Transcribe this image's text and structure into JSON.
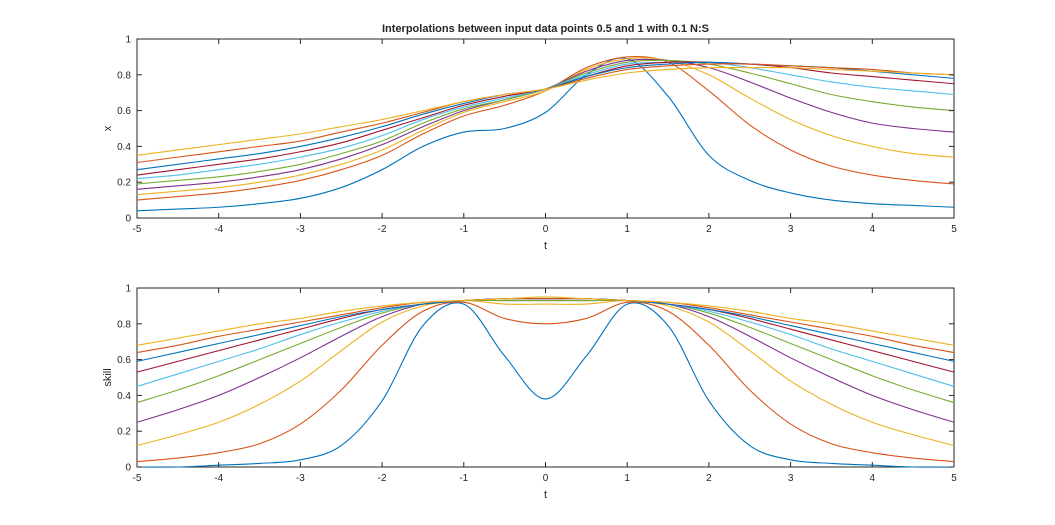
{
  "chart_data": [
    {
      "type": "line",
      "title": "Interpolations between input data points 0.5 and 1 with 0.1 N:S",
      "xlabel": "t",
      "ylabel": "x",
      "xlim": [
        -5,
        5
      ],
      "ylim": [
        0,
        1
      ],
      "xticks": [
        "-5",
        "-4",
        "-3",
        "-2",
        "-1",
        "0",
        "1",
        "2",
        "3",
        "4",
        "5"
      ],
      "yticks": [
        "0",
        "0.2",
        "0.4",
        "0.6",
        "0.8",
        "1"
      ],
      "grid": false,
      "x": [
        -5,
        -4.5,
        -4,
        -3.5,
        -3,
        -2.5,
        -2,
        -1.5,
        -1,
        -0.5,
        0,
        0.5,
        1,
        1.5,
        2,
        2.5,
        3,
        3.5,
        4,
        4.5,
        5
      ],
      "series": [
        {
          "color": "#0072BD",
          "values": [
            0.04,
            0.05,
            0.06,
            0.08,
            0.11,
            0.17,
            0.27,
            0.4,
            0.48,
            0.5,
            0.59,
            0.8,
            0.89,
            0.68,
            0.35,
            0.21,
            0.14,
            0.1,
            0.08,
            0.07,
            0.06
          ]
        },
        {
          "color": "#D95319",
          "values": [
            0.1,
            0.12,
            0.14,
            0.17,
            0.21,
            0.27,
            0.35,
            0.47,
            0.57,
            0.63,
            0.71,
            0.84,
            0.9,
            0.87,
            0.71,
            0.52,
            0.38,
            0.29,
            0.24,
            0.21,
            0.19
          ]
        },
        {
          "color": "#EDB120",
          "values": [
            0.13,
            0.15,
            0.17,
            0.2,
            0.24,
            0.3,
            0.38,
            0.49,
            0.59,
            0.65,
            0.71,
            0.83,
            0.89,
            0.88,
            0.8,
            0.67,
            0.55,
            0.46,
            0.4,
            0.36,
            0.34
          ]
        },
        {
          "color": "#7E2F8E",
          "values": [
            0.16,
            0.18,
            0.2,
            0.23,
            0.27,
            0.33,
            0.41,
            0.51,
            0.6,
            0.66,
            0.72,
            0.82,
            0.88,
            0.88,
            0.84,
            0.76,
            0.67,
            0.59,
            0.53,
            0.5,
            0.48
          ]
        },
        {
          "color": "#77AC30",
          "values": [
            0.19,
            0.21,
            0.23,
            0.26,
            0.3,
            0.36,
            0.43,
            0.53,
            0.61,
            0.66,
            0.72,
            0.81,
            0.87,
            0.88,
            0.86,
            0.81,
            0.75,
            0.69,
            0.65,
            0.62,
            0.6
          ]
        },
        {
          "color": "#4DBEEE",
          "values": [
            0.22,
            0.24,
            0.27,
            0.3,
            0.34,
            0.39,
            0.46,
            0.55,
            0.62,
            0.67,
            0.72,
            0.8,
            0.86,
            0.87,
            0.87,
            0.84,
            0.8,
            0.76,
            0.73,
            0.71,
            0.69
          ]
        },
        {
          "color": "#A2142F",
          "values": [
            0.24,
            0.27,
            0.3,
            0.33,
            0.37,
            0.42,
            0.49,
            0.56,
            0.63,
            0.68,
            0.72,
            0.79,
            0.85,
            0.87,
            0.87,
            0.86,
            0.84,
            0.81,
            0.79,
            0.77,
            0.75
          ]
        },
        {
          "color": "#0072BD",
          "values": [
            0.27,
            0.3,
            0.33,
            0.36,
            0.4,
            0.45,
            0.51,
            0.58,
            0.64,
            0.69,
            0.72,
            0.79,
            0.84,
            0.86,
            0.87,
            0.86,
            0.85,
            0.84,
            0.82,
            0.8,
            0.78
          ]
        },
        {
          "color": "#D95319",
          "values": [
            0.31,
            0.34,
            0.37,
            0.4,
            0.43,
            0.48,
            0.53,
            0.59,
            0.65,
            0.69,
            0.72,
            0.78,
            0.83,
            0.85,
            0.86,
            0.86,
            0.85,
            0.84,
            0.83,
            0.81,
            0.8
          ]
        },
        {
          "color": "#EDB120",
          "values": [
            0.35,
            0.38,
            0.41,
            0.44,
            0.47,
            0.51,
            0.55,
            0.6,
            0.65,
            0.69,
            0.72,
            0.77,
            0.81,
            0.83,
            0.84,
            0.84,
            0.84,
            0.83,
            0.82,
            0.81,
            0.8
          ]
        }
      ]
    },
    {
      "type": "line",
      "title": "",
      "xlabel": "t",
      "ylabel": "skill",
      "xlim": [
        -5,
        5
      ],
      "ylim": [
        0,
        1
      ],
      "xticks": [
        "-5",
        "-4",
        "-3",
        "-2",
        "-1",
        "0",
        "1",
        "2",
        "3",
        "4",
        "5"
      ],
      "yticks": [
        "0",
        "0.2",
        "0.4",
        "0.6",
        "0.8",
        "1"
      ],
      "grid": false,
      "x": [
        -5,
        -4.5,
        -4,
        -3.5,
        -3,
        -2.5,
        -2,
        -1.5,
        -1,
        -0.5,
        0,
        0.5,
        1,
        1.5,
        2,
        2.5,
        3,
        3.5,
        4,
        4.5,
        5
      ],
      "series": [
        {
          "color": "#0072BD",
          "values": [
            0.0,
            0.0,
            0.01,
            0.02,
            0.04,
            0.12,
            0.37,
            0.79,
            0.91,
            0.62,
            0.38,
            0.62,
            0.91,
            0.79,
            0.37,
            0.12,
            0.04,
            0.02,
            0.01,
            0.0,
            0.0
          ]
        },
        {
          "color": "#D95319",
          "values": [
            0.03,
            0.05,
            0.08,
            0.13,
            0.24,
            0.43,
            0.68,
            0.87,
            0.92,
            0.83,
            0.8,
            0.83,
            0.92,
            0.87,
            0.68,
            0.43,
            0.24,
            0.13,
            0.08,
            0.05,
            0.03
          ]
        },
        {
          "color": "#EDB120",
          "values": [
            0.12,
            0.18,
            0.25,
            0.35,
            0.48,
            0.65,
            0.81,
            0.9,
            0.93,
            0.91,
            0.91,
            0.91,
            0.93,
            0.9,
            0.81,
            0.65,
            0.48,
            0.35,
            0.25,
            0.18,
            0.12
          ]
        },
        {
          "color": "#7E2F8E",
          "values": [
            0.25,
            0.32,
            0.4,
            0.5,
            0.61,
            0.73,
            0.84,
            0.91,
            0.93,
            0.93,
            0.93,
            0.93,
            0.93,
            0.91,
            0.84,
            0.73,
            0.61,
            0.5,
            0.4,
            0.32,
            0.25
          ]
        },
        {
          "color": "#77AC30",
          "values": [
            0.36,
            0.43,
            0.51,
            0.6,
            0.69,
            0.78,
            0.86,
            0.91,
            0.93,
            0.93,
            0.93,
            0.93,
            0.93,
            0.91,
            0.86,
            0.78,
            0.69,
            0.6,
            0.51,
            0.43,
            0.36
          ]
        },
        {
          "color": "#4DBEEE",
          "values": [
            0.45,
            0.52,
            0.59,
            0.66,
            0.74,
            0.81,
            0.87,
            0.91,
            0.93,
            0.94,
            0.94,
            0.94,
            0.93,
            0.91,
            0.87,
            0.81,
            0.74,
            0.66,
            0.59,
            0.52,
            0.45
          ]
        },
        {
          "color": "#A2142F",
          "values": [
            0.53,
            0.59,
            0.65,
            0.71,
            0.77,
            0.83,
            0.88,
            0.91,
            0.93,
            0.94,
            0.94,
            0.94,
            0.93,
            0.91,
            0.88,
            0.83,
            0.77,
            0.71,
            0.65,
            0.59,
            0.53
          ]
        },
        {
          "color": "#0072BD",
          "values": [
            0.59,
            0.64,
            0.69,
            0.74,
            0.79,
            0.84,
            0.88,
            0.91,
            0.93,
            0.94,
            0.94,
            0.94,
            0.93,
            0.91,
            0.88,
            0.84,
            0.79,
            0.74,
            0.69,
            0.64,
            0.59
          ]
        },
        {
          "color": "#D95319",
          "values": [
            0.64,
            0.68,
            0.73,
            0.77,
            0.81,
            0.85,
            0.89,
            0.92,
            0.93,
            0.94,
            0.94,
            0.94,
            0.93,
            0.92,
            0.89,
            0.85,
            0.81,
            0.77,
            0.73,
            0.68,
            0.64
          ]
        },
        {
          "color": "#EDB120",
          "values": [
            0.68,
            0.72,
            0.76,
            0.8,
            0.83,
            0.87,
            0.9,
            0.92,
            0.93,
            0.94,
            0.95,
            0.94,
            0.93,
            0.92,
            0.9,
            0.87,
            0.83,
            0.8,
            0.76,
            0.72,
            0.68
          ]
        }
      ]
    }
  ]
}
